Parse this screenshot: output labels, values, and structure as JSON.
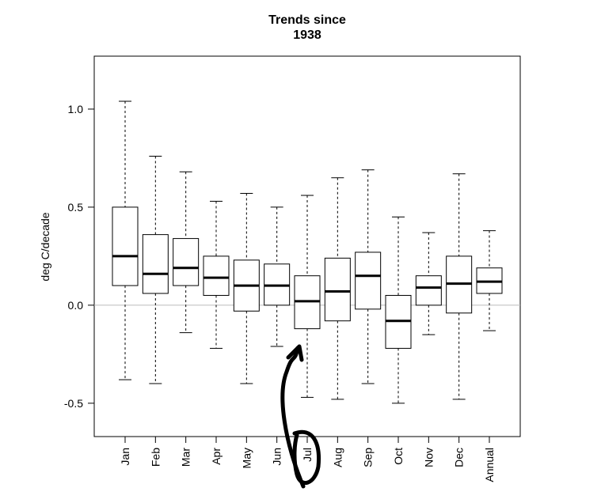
{
  "chart_data": {
    "type": "box",
    "title": [
      "Trends since",
      "1938"
    ],
    "ylabel": "deg C/decade",
    "categories": [
      "Jan",
      "Feb",
      "Mar",
      "Apr",
      "May",
      "Jun",
      "Jul",
      "Aug",
      "Sep",
      "Oct",
      "Nov",
      "Dec",
      "Annual"
    ],
    "whisker_high": [
      1.04,
      0.76,
      0.68,
      0.53,
      0.57,
      0.5,
      0.56,
      0.65,
      0.69,
      0.45,
      0.37,
      0.67,
      0.38
    ],
    "q3": [
      0.5,
      0.36,
      0.34,
      0.25,
      0.23,
      0.21,
      0.15,
      0.24,
      0.27,
      0.05,
      0.15,
      0.25,
      0.19
    ],
    "median": [
      0.25,
      0.16,
      0.19,
      0.14,
      0.1,
      0.1,
      0.02,
      0.07,
      0.15,
      -0.08,
      0.09,
      0.11,
      0.12
    ],
    "q1": [
      0.1,
      0.06,
      0.1,
      0.05,
      -0.03,
      0.0,
      -0.12,
      -0.08,
      -0.02,
      -0.22,
      0.0,
      -0.04,
      0.06
    ],
    "whisker_low": [
      -0.38,
      -0.4,
      -0.14,
      -0.22,
      -0.4,
      -0.21,
      -0.47,
      -0.48,
      -0.4,
      -0.5,
      -0.15,
      -0.48,
      -0.13
    ],
    "ylim": [
      -0.67,
      1.27
    ],
    "yticks": [
      -0.5,
      {
        "value": 0,
        "label": "0.0"
      },
      0.5,
      {
        "value": 1,
        "label": "1.0"
      }
    ],
    "reference_line": 0,
    "reference_color": "#bbbbbb",
    "color": "#000000"
  }
}
